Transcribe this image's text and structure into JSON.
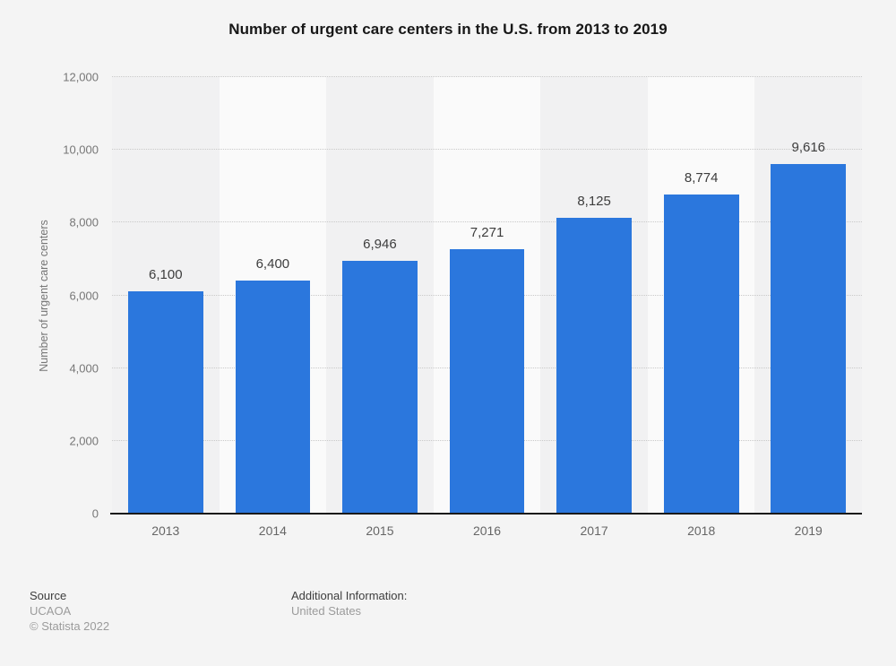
{
  "title": "Number of urgent care centers in the U.S. from 2013 to 2019",
  "chart_data": {
    "type": "bar",
    "categories": [
      "2013",
      "2014",
      "2015",
      "2016",
      "2017",
      "2018",
      "2019"
    ],
    "values": [
      6100,
      6400,
      6946,
      7271,
      8125,
      8774,
      9616
    ],
    "value_labels": [
      "6,100",
      "6,400",
      "6,946",
      "7,271",
      "8,125",
      "8,774",
      "9,616"
    ],
    "title": "Number of urgent care centers in the U.S. from 2013 to 2019",
    "xlabel": "",
    "ylabel": "Number of urgent care centers",
    "ylim": [
      0,
      12000
    ],
    "yticks": [
      0,
      2000,
      4000,
      6000,
      8000,
      10000,
      12000
    ],
    "ytick_labels": [
      "0",
      "2,000",
      "4,000",
      "6,000",
      "8,000",
      "10,000",
      "12,000"
    ],
    "grid": "horizontal-dotted",
    "legend": "none",
    "bar_color": "#2b77dd",
    "grid_color": "#c9c9c9",
    "band_colors": [
      "#f1f1f2",
      "#fafafa"
    ],
    "page_background": "#f4f4f4"
  },
  "footer": {
    "source_label": "Source",
    "source_value": "UCAOA",
    "copyright": "© Statista 2022",
    "additional_label": "Additional Information:",
    "additional_value": "United States"
  }
}
